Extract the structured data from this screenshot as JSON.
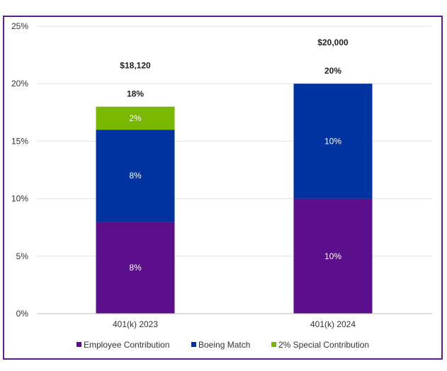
{
  "chart_data": {
    "type": "bar",
    "stacked": true,
    "categories": [
      "401(k) 2023",
      "401(k) 2024"
    ],
    "series": [
      {
        "name": "Employee Contribution",
        "values": [
          8,
          10
        ],
        "labels": [
          "8%",
          "10%"
        ],
        "color": "#5b0f8b"
      },
      {
        "name": "Boeing Match",
        "values": [
          8,
          10
        ],
        "labels": [
          "8%",
          "10%"
        ],
        "color": "#0033a0"
      },
      {
        "name": "2% Special Contribution",
        "values": [
          2,
          0
        ],
        "labels": [
          "2%",
          ""
        ],
        "color": "#7ab800"
      }
    ],
    "totals": [
      "18%",
      "20%"
    ],
    "dollar_totals": [
      "$18,120",
      "$20,000"
    ],
    "ylim": [
      0,
      25
    ],
    "yticks": [
      0,
      5,
      10,
      15,
      20,
      25
    ],
    "ytick_labels": [
      "0%",
      "5%",
      "10%",
      "15%",
      "20%",
      "25%"
    ],
    "grid": true,
    "legend": "bottom",
    "title": "",
    "xlabel": "",
    "ylabel": ""
  }
}
